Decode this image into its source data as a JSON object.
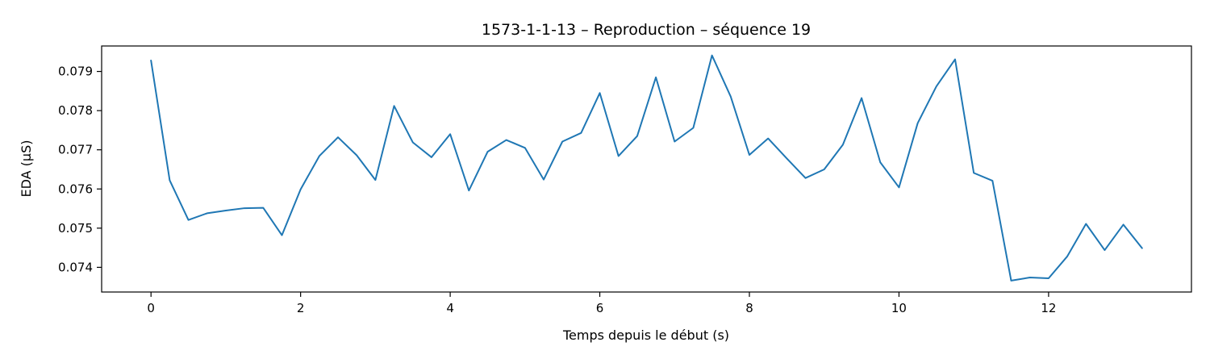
{
  "chart_data": {
    "type": "line",
    "title": "1573-1-1-13 – Reproduction – séquence 19",
    "xlabel": "Temps depuis le début (s)",
    "ylabel": "EDA (µS)",
    "xlim": [
      -0.66,
      13.91
    ],
    "ylim": [
      0.07337,
      0.07965
    ],
    "x_ticks": [
      0,
      2,
      4,
      6,
      8,
      10,
      12
    ],
    "x_tick_labels": [
      "0",
      "2",
      "4",
      "6",
      "8",
      "10",
      "12"
    ],
    "y_ticks": [
      0.074,
      0.075,
      0.076,
      0.077,
      0.078,
      0.079
    ],
    "y_tick_labels": [
      "0.074",
      "0.075",
      "0.076",
      "0.077",
      "0.078",
      "0.079"
    ],
    "grid": false,
    "series": [
      {
        "color": "#1f77b4",
        "x": [
          0,
          0.25,
          0.5,
          0.75,
          1.0,
          1.25,
          1.5,
          1.75,
          2.0,
          2.25,
          2.5,
          2.75,
          3.0,
          3.25,
          3.5,
          3.75,
          4.0,
          4.25,
          4.5,
          4.75,
          5.0,
          5.25,
          5.5,
          5.75,
          6.0,
          6.25,
          6.5,
          6.75,
          7.0,
          7.25,
          7.5,
          7.75,
          8.0,
          8.25,
          8.5,
          8.75,
          9.0,
          9.25,
          9.5,
          9.75,
          10.0,
          10.25,
          10.5,
          10.75,
          11.0,
          11.25,
          11.5,
          11.75,
          12.0,
          12.25,
          12.5,
          12.75,
          13.0,
          13.25
        ],
        "values": [
          0.07928,
          0.07622,
          0.07521,
          0.07538,
          0.07545,
          0.07551,
          0.07552,
          0.07482,
          0.07599,
          0.07684,
          0.07732,
          0.07686,
          0.07623,
          0.07812,
          0.07719,
          0.07681,
          0.0774,
          0.07596,
          0.07695,
          0.07725,
          0.07705,
          0.07624,
          0.07721,
          0.07743,
          0.07845,
          0.07684,
          0.07735,
          0.07885,
          0.07721,
          0.07756,
          0.07941,
          0.07836,
          0.07687,
          0.07729,
          0.07678,
          0.07628,
          0.0765,
          0.07713,
          0.07832,
          0.07668,
          0.07604,
          0.07768,
          0.07862,
          0.07931,
          0.07641,
          0.07621,
          0.07366,
          0.07374,
          0.07372,
          0.07428,
          0.07511,
          0.07444,
          0.07509,
          0.07449
        ]
      }
    ]
  }
}
